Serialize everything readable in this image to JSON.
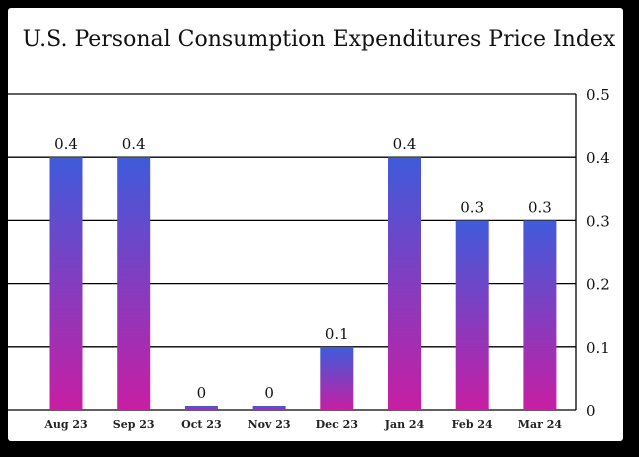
{
  "chart_data": {
    "type": "bar",
    "title": "U.S. Personal Consumption Expenditures Price Index",
    "categories": [
      "Aug 23",
      "Sep 23",
      "Oct 23",
      "Nov 23",
      "Dec 23",
      "Jan 24",
      "Feb 24",
      "Mar 24"
    ],
    "values": [
      0.4,
      0.4,
      0,
      0,
      0.1,
      0.4,
      0.3,
      0.3
    ],
    "data_labels": [
      "0.4",
      "0.4",
      "0",
      "0",
      "0.1",
      "0.4",
      "0.3",
      "0.3"
    ],
    "yticks": [
      "0",
      "0.1",
      "0.2",
      "0.3",
      "0.4",
      "0.5"
    ],
    "ylim": [
      0,
      0.5
    ],
    "yaxis_position": "right",
    "grid": true,
    "xlabel": "",
    "ylabel": "",
    "colors": {
      "bar_top": "#3f5bdb",
      "bar_bottom": "#c81ea3",
      "grid": "#000000"
    }
  }
}
